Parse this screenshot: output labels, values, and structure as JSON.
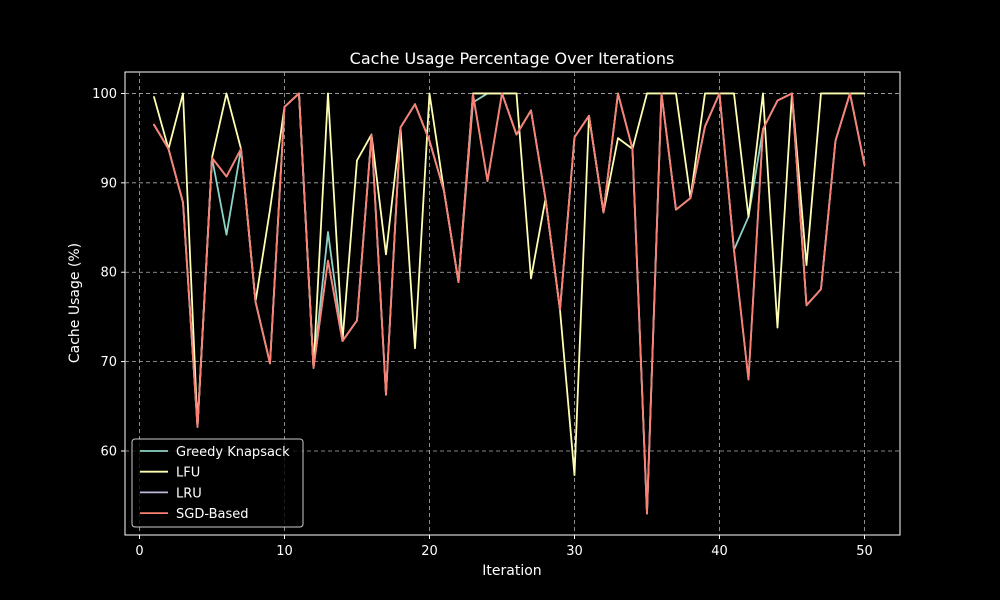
{
  "chart_data": {
    "type": "line",
    "title": "Cache Usage Percentage Over Iterations",
    "xlabel": "Iteration",
    "ylabel": "Cache Usage (%)",
    "xlim": [
      -1,
      52.45
    ],
    "ylim": [
      50.6,
      102.4
    ],
    "x_ticks": [
      0,
      10,
      20,
      30,
      40,
      50
    ],
    "y_ticks": [
      60,
      70,
      80,
      90,
      100
    ],
    "grid": true,
    "legend_position": "lower-left",
    "background_color": "#000000",
    "x": [
      1,
      2,
      3,
      4,
      5,
      6,
      7,
      8,
      9,
      10,
      11,
      12,
      13,
      14,
      15,
      16,
      17,
      18,
      19,
      20,
      21,
      22,
      23,
      24,
      25,
      26,
      27,
      28,
      29,
      30,
      31,
      32,
      33,
      34,
      35,
      36,
      37,
      38,
      39,
      40,
      41,
      42,
      43,
      44,
      45,
      46,
      47,
      48,
      49,
      50
    ],
    "series": [
      {
        "name": "Greedy Knapsack",
        "color": "#8dd3c7",
        "values": [
          96.5,
          93.8,
          87.8,
          62.7,
          92.8,
          84.2,
          93.8,
          76.7,
          69.8,
          98.5,
          100,
          69.3,
          84.5,
          72.3,
          74.6,
          95.4,
          66.3,
          96.2,
          98.8,
          94.7,
          89.1,
          78.9,
          99.0,
          100,
          100,
          95.4,
          98.1,
          88.2,
          75.8,
          95.1,
          97.5,
          86.7,
          100,
          93.8,
          53.0,
          100,
          87.0,
          88.3,
          96.3,
          100,
          82.5,
          86.2,
          96.0,
          99.2,
          100,
          76.3,
          78.1,
          94.7,
          100,
          92.0
        ]
      },
      {
        "name": "LFU",
        "color": "#ffffb3",
        "values": [
          99.6,
          93.8,
          100,
          62.7,
          92.8,
          100,
          93.8,
          76.7,
          87.0,
          98.5,
          100,
          69.3,
          100,
          72.3,
          92.5,
          95.4,
          82.0,
          96.2,
          71.5,
          100,
          89.1,
          78.9,
          100,
          100,
          100,
          100,
          79.3,
          88.2,
          75.8,
          57.3,
          97.5,
          86.7,
          95.0,
          93.8,
          100,
          100,
          100,
          88.3,
          100,
          100,
          100,
          86.2,
          100,
          73.8,
          100,
          80.8,
          100,
          100,
          100,
          100
        ]
      },
      {
        "name": "LRU",
        "color": "#bebada",
        "values": [
          96.5,
          93.8,
          87.8,
          62.7,
          92.8,
          90.7,
          93.8,
          76.7,
          69.8,
          98.5,
          100,
          69.3,
          81.3,
          72.3,
          74.6,
          95.4,
          66.3,
          96.2,
          98.8,
          94.7,
          89.1,
          78.9,
          99.9,
          90.2,
          100,
          95.4,
          98.1,
          88.2,
          75.8,
          95.1,
          97.5,
          86.7,
          100,
          93.8,
          53.0,
          100,
          87.0,
          88.3,
          96.3,
          100,
          82.5,
          68.0,
          96.0,
          99.2,
          100,
          76.3,
          78.1,
          94.7,
          100,
          92.0
        ]
      },
      {
        "name": "SGD-Based",
        "color": "#fb8072",
        "values": [
          96.5,
          93.8,
          87.8,
          62.7,
          92.8,
          90.7,
          93.8,
          76.7,
          69.8,
          98.5,
          100,
          69.3,
          81.3,
          72.3,
          74.6,
          95.4,
          66.3,
          96.2,
          98.8,
          94.7,
          89.1,
          78.9,
          99.9,
          90.2,
          100,
          95.4,
          98.1,
          88.2,
          75.8,
          95.1,
          97.5,
          86.7,
          100,
          93.8,
          53.0,
          100,
          87.0,
          88.3,
          96.3,
          100,
          82.5,
          68.0,
          96.0,
          99.2,
          100,
          76.3,
          78.1,
          94.7,
          100,
          92.0
        ]
      }
    ]
  }
}
